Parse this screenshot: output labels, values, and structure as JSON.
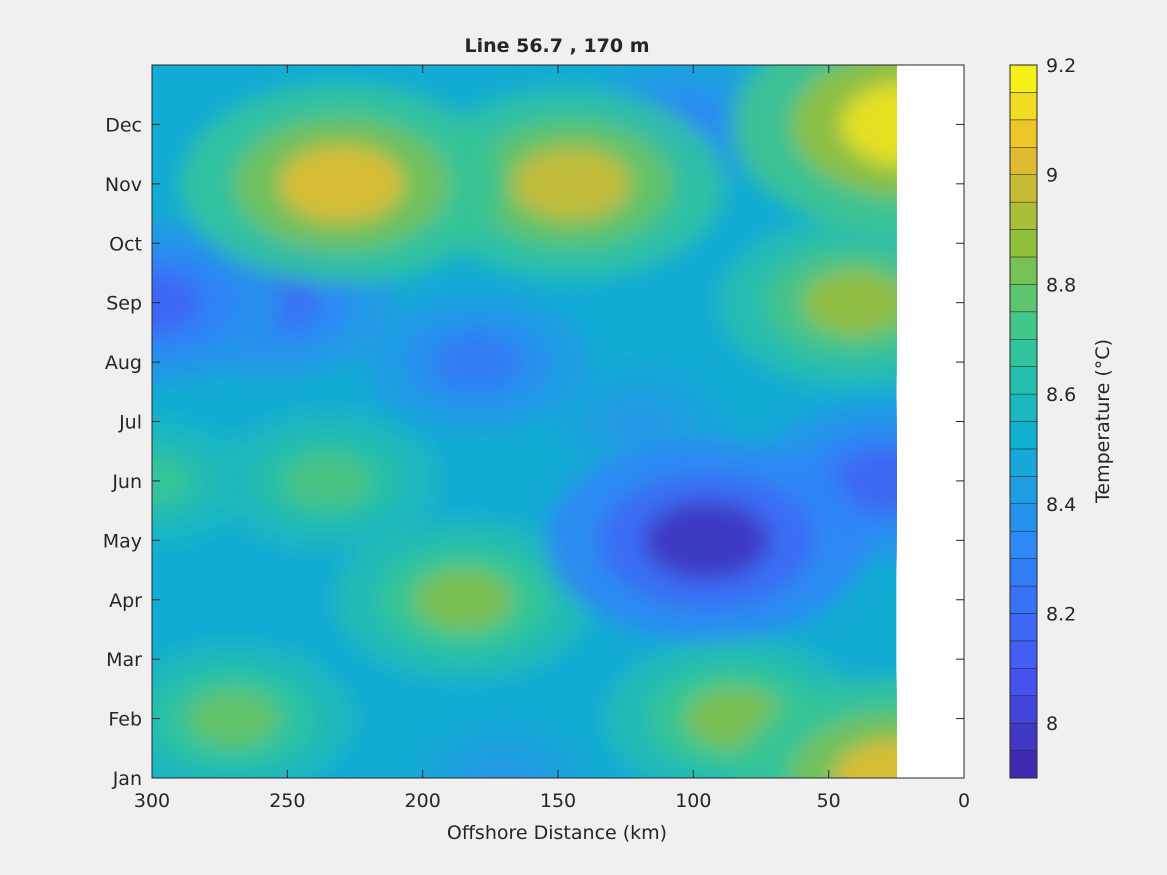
{
  "chart_data": {
    "type": "heatmap",
    "subtype": "filled-contour",
    "title": "Line 56.7 , 170 m",
    "xlabel": "Offshore Distance (km)",
    "ylabel": "",
    "xlim": [
      300,
      0
    ],
    "x_reversed": true,
    "x_ticks": [
      "300",
      "250",
      "200",
      "150",
      "100",
      "50",
      "0"
    ],
    "y_ticks": [
      "Jan",
      "Feb",
      "Mar",
      "Apr",
      "May",
      "Jun",
      "Jul",
      "Aug",
      "Sep",
      "Oct",
      "Nov",
      "Dec"
    ],
    "data_extent_km": [
      25,
      300
    ],
    "colorbar": {
      "label": "Temperature (°C)",
      "range": [
        7.9,
        9.2
      ],
      "ticks": [
        "8",
        "8.2",
        "8.4",
        "8.6",
        "8.8",
        "9",
        "9.2"
      ],
      "level_step": 0.05,
      "colormap": "parula"
    },
    "features": [
      {
        "km": 230,
        "month": "Nov",
        "value": 9.05
      },
      {
        "km": 145,
        "month": "Nov",
        "value": 9.0
      },
      {
        "km": 20,
        "month": "Dec",
        "value": 9.15
      },
      {
        "km": 40,
        "month": "Sep",
        "value": 8.9
      },
      {
        "km": 105,
        "month": "Dec",
        "value": 8.3
      },
      {
        "km": 300,
        "month": "Sep",
        "value": 8.15
      },
      {
        "km": 255,
        "month": "Sep",
        "value": 8.2
      },
      {
        "km": 180,
        "month": "Aug",
        "value": 8.25
      },
      {
        "km": 235,
        "month": "Jun",
        "value": 8.75
      },
      {
        "km": 300,
        "month": "Jun",
        "value": 8.7
      },
      {
        "km": 95,
        "month": "May",
        "value": 7.95
      },
      {
        "km": 30,
        "month": "Jun",
        "value": 8.15
      },
      {
        "km": 185,
        "month": "Apr",
        "value": 8.85
      },
      {
        "km": 85,
        "month": "Feb",
        "value": 8.85
      },
      {
        "km": 25,
        "month": "Jan",
        "value": 9.05
      },
      {
        "km": 270,
        "month": "Feb",
        "value": 8.8
      },
      {
        "km": 170,
        "month": "Jan",
        "value": 8.4
      },
      {
        "km": 120,
        "month": "Jul",
        "value": 8.4
      }
    ],
    "background_value": 8.5,
    "grid": false
  }
}
